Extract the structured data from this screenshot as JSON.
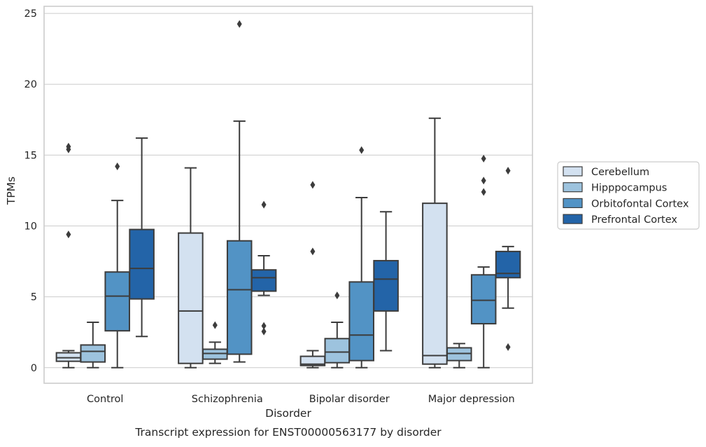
{
  "chart_data": {
    "type": "boxplot",
    "title": "",
    "caption": "Transcript expression for ENST00000563177 by disorder",
    "xlabel": "Disorder",
    "ylabel": "TPMs",
    "ylim": [
      -1.1,
      25.5
    ],
    "yticks": [
      0,
      5,
      10,
      15,
      20,
      25
    ],
    "grid": "horizontal",
    "legend_position": "right",
    "categories": [
      "Control",
      "Schizophrenia",
      "Bipolar disorder",
      "Major depression"
    ],
    "series": [
      {
        "name": "Cerebellum",
        "color": "#d3e1f0",
        "boxes": [
          {
            "whislo": 0.0,
            "q1": 0.45,
            "med": 0.7,
            "q3": 1.05,
            "whishi": 1.2,
            "fliers": [
              15.4,
              15.6,
              9.4
            ]
          },
          {
            "whislo": 0.0,
            "q1": 0.3,
            "med": 4.0,
            "q3": 9.5,
            "whishi": 14.1,
            "fliers": []
          },
          {
            "whislo": 0.0,
            "q1": 0.15,
            "med": 0.25,
            "q3": 0.8,
            "whishi": 1.2,
            "fliers": [
              12.9,
              8.2
            ]
          },
          {
            "whislo": 0.0,
            "q1": 0.25,
            "med": 0.85,
            "q3": 11.6,
            "whishi": 17.6,
            "fliers": []
          }
        ]
      },
      {
        "name": "Hipppocampus",
        "color": "#9dc3de",
        "boxes": [
          {
            "whislo": 0.0,
            "q1": 0.4,
            "med": 1.15,
            "q3": 1.6,
            "whishi": 3.2,
            "fliers": []
          },
          {
            "whislo": 0.3,
            "q1": 0.6,
            "med": 1.0,
            "q3": 1.3,
            "whishi": 1.8,
            "fliers": [
              3.0
            ]
          },
          {
            "whislo": 0.0,
            "q1": 0.35,
            "med": 1.1,
            "q3": 2.05,
            "whishi": 3.2,
            "fliers": [
              5.1
            ]
          },
          {
            "whislo": 0.0,
            "q1": 0.5,
            "med": 1.0,
            "q3": 1.4,
            "whishi": 1.7,
            "fliers": []
          }
        ]
      },
      {
        "name": "Orbitofontal Cortex",
        "color": "#5293c5",
        "boxes": [
          {
            "whislo": 0.0,
            "q1": 2.6,
            "med": 5.05,
            "q3": 6.75,
            "whishi": 11.8,
            "fliers": [
              14.2
            ]
          },
          {
            "whislo": 0.4,
            "q1": 0.95,
            "med": 5.5,
            "q3": 8.95,
            "whishi": 17.4,
            "fliers": [
              24.25
            ]
          },
          {
            "whislo": 0.0,
            "q1": 0.5,
            "med": 2.3,
            "q3": 6.05,
            "whishi": 12.0,
            "fliers": [
              15.35
            ]
          },
          {
            "whislo": 0.0,
            "q1": 3.1,
            "med": 4.75,
            "q3": 6.55,
            "whishi": 7.1,
            "fliers": [
              14.75,
              13.2,
              12.4
            ]
          }
        ]
      },
      {
        "name": "Prefrontal Cortex",
        "color": "#2364a8",
        "boxes": [
          {
            "whislo": 2.2,
            "q1": 4.85,
            "med": 7.0,
            "q3": 9.75,
            "whishi": 16.2,
            "fliers": []
          },
          {
            "whislo": 5.1,
            "q1": 5.4,
            "med": 6.35,
            "q3": 6.9,
            "whishi": 7.9,
            "fliers": [
              11.5,
              2.95,
              2.55
            ]
          },
          {
            "whislo": 1.2,
            "q1": 4.0,
            "med": 6.25,
            "q3": 7.55,
            "whishi": 11.0,
            "fliers": []
          },
          {
            "whislo": 4.2,
            "q1": 6.35,
            "med": 6.65,
            "q3": 8.2,
            "whishi": 8.55,
            "fliers": [
              13.9,
              1.45
            ]
          }
        ]
      }
    ]
  }
}
